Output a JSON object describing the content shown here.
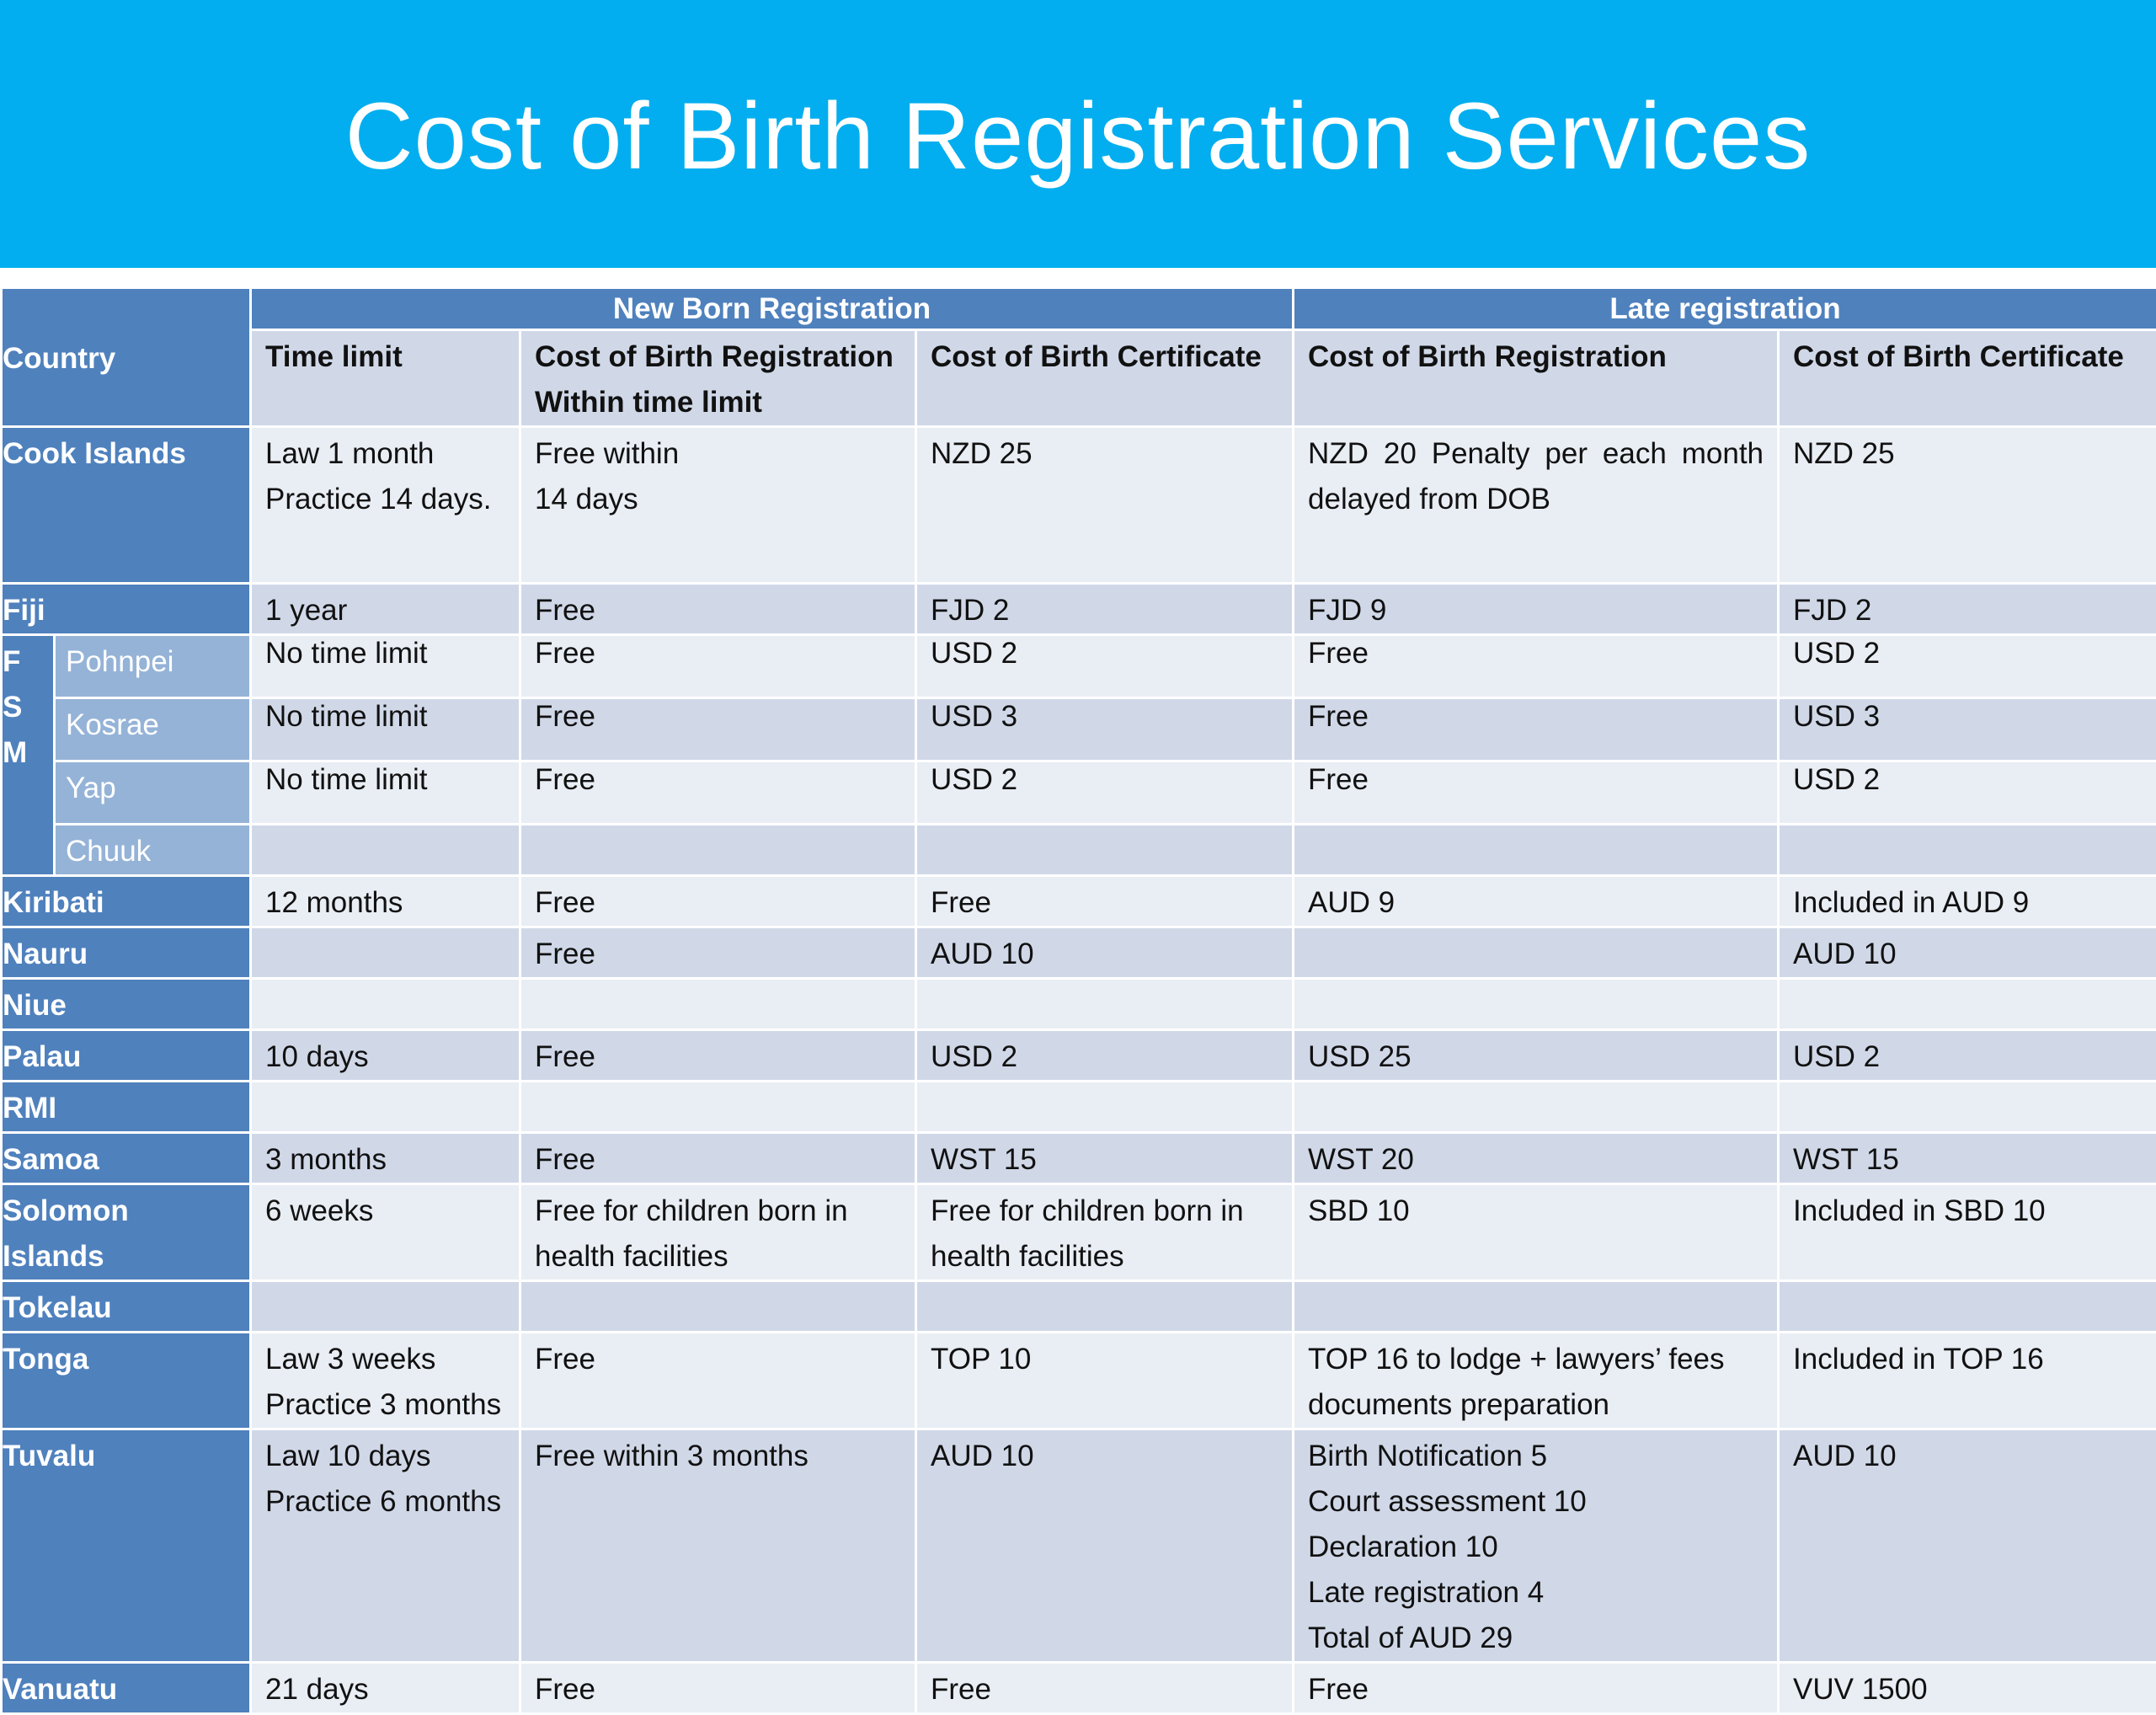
{
  "title": "Cost of Birth Registration Services",
  "colors": {
    "banner": "#02aeef",
    "header_dark": "#4f81bd",
    "sub_country": "#95b3d7",
    "row_light": "#e9edf4",
    "row_dark": "#d0d8e8"
  },
  "table": {
    "groups": {
      "newborn": "New Born Registration",
      "late": "Late registration"
    },
    "headers": {
      "country": "Country",
      "time_limit": "Time limit",
      "nb_reg_cost": "Cost of Birth Registration\nWithin time limit",
      "nb_cert_cost": "Cost of Birth Certificate",
      "late_reg_cost": "Cost of Birth Registration",
      "late_cert_cost": "Cost of Birth Certificate"
    },
    "fsm_label": "F\nS\nM",
    "rows": [
      {
        "country": "Cook Islands",
        "cells": [
          "Law 1 month\nPractice 14 days.",
          "Free within\n14 days",
          "NZD 25",
          "NZD 20 Penalty  per each month delayed from DOB",
          "NZD 25"
        ]
      },
      {
        "country": "Fiji",
        "cells": [
          "1 year",
          "Free",
          "FJD 2",
          "FJD 9",
          "FJD 2"
        ]
      },
      {
        "country": "Pohnpei",
        "cells": [
          "No time limit",
          "Free",
          "USD 2",
          "Free",
          "USD 2"
        ]
      },
      {
        "country": "Kosrae",
        "cells": [
          "No time limit",
          "Free",
          "USD 3",
          "Free",
          "USD 3"
        ]
      },
      {
        "country": "Yap",
        "cells": [
          "No time limit",
          "Free",
          "USD 2",
          "Free",
          "USD 2"
        ]
      },
      {
        "country": "Chuuk",
        "cells": [
          "",
          "",
          "",
          "",
          ""
        ]
      },
      {
        "country": "Kiribati",
        "cells": [
          "12 months",
          "Free",
          "Free",
          "AUD 9",
          "Included in AUD 9"
        ]
      },
      {
        "country": "Nauru",
        "cells": [
          "",
          "Free",
          "AUD 10",
          "",
          "AUD 10"
        ]
      },
      {
        "country": "Niue",
        "cells": [
          "",
          "",
          "",
          "",
          ""
        ]
      },
      {
        "country": "Palau",
        "cells": [
          "10 days",
          "Free",
          "USD 2",
          "USD 25",
          "USD 2"
        ]
      },
      {
        "country": "RMI",
        "cells": [
          "",
          "",
          "",
          "",
          ""
        ]
      },
      {
        "country": "Samoa",
        "cells": [
          "3 months",
          "Free",
          "WST 15",
          "WST 20",
          "WST 15"
        ]
      },
      {
        "country": "Solomon Islands",
        "cells": [
          "6 weeks",
          "Free for children born in health facilities",
          "Free for children born in health facilities",
          "SBD 10",
          "Included in SBD 10"
        ]
      },
      {
        "country": "Tokelau",
        "cells": [
          "",
          "",
          "",
          "",
          ""
        ]
      },
      {
        "country": "Tonga",
        "cells": [
          "Law 3 weeks\nPractice 3 months",
          "Free",
          "TOP 10",
          "TOP 16 to lodge + lawyers’ fees documents preparation",
          "Included in TOP 16"
        ]
      },
      {
        "country": "Tuvalu",
        "cells": [
          "Law 10 days\nPractice 6 months",
          "Free within 3 months",
          "AUD 10",
          "Birth Notification 5\nCourt assessment 10\nDeclaration 10\nLate registration 4\nTotal of AUD 29",
          "AUD 10"
        ]
      },
      {
        "country": "Vanuatu",
        "cells": [
          "21 days",
          "Free",
          "Free",
          "Free",
          "VUV 1500"
        ]
      }
    ]
  }
}
